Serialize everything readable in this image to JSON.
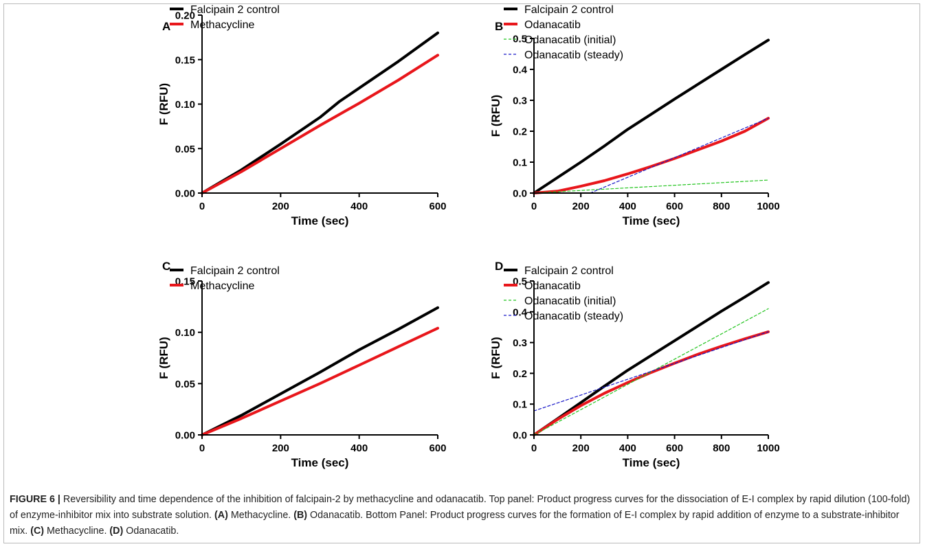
{
  "colors": {
    "control": "#000000",
    "inhibitor": "#e8161b",
    "initial": "#22c41e",
    "steady": "#1616c8"
  },
  "panels": [
    {
      "label": "A",
      "chart_data": {
        "type": "line",
        "xlabel": "Time (sec)",
        "ylabel": "F (RFU)",
        "xlim": [
          0,
          600
        ],
        "ylim": [
          0,
          0.2
        ],
        "xticks": [
          "0",
          "200",
          "400",
          "600"
        ],
        "yticks": [
          "0.00",
          "0.05",
          "0.10",
          "0.15",
          "0.20"
        ],
        "legend": "top-left",
        "series": [
          {
            "name": "Falcipain 2 control",
            "style": "thick",
            "color": "#000000",
            "points": [
              [
                0,
                0
              ],
              [
                100,
                0.026
              ],
              [
                200,
                0.055
              ],
              [
                300,
                0.085
              ],
              [
                350,
                0.103
              ],
              [
                400,
                0.118
              ],
              [
                500,
                0.148
              ],
              [
                600,
                0.18
              ]
            ]
          },
          {
            "name": "Methacycline",
            "style": "thick",
            "color": "#e8161b",
            "points": [
              [
                0,
                0
              ],
              [
                100,
                0.024
              ],
              [
                200,
                0.05
              ],
              [
                300,
                0.076
              ],
              [
                400,
                0.101
              ],
              [
                500,
                0.127
              ],
              [
                600,
                0.155
              ]
            ]
          }
        ]
      }
    },
    {
      "label": "B",
      "chart_data": {
        "type": "line",
        "xlabel": "Time (sec)",
        "ylabel": "F (RFU)",
        "xlim": [
          0,
          1000
        ],
        "ylim": [
          0,
          0.5
        ],
        "xticks": [
          "0",
          "200",
          "400",
          "600",
          "800",
          "1000"
        ],
        "yticks": [
          "0.0",
          "0.1",
          "0.2",
          "0.3",
          "0.4",
          "0.5"
        ],
        "legend": "top-left",
        "series": [
          {
            "name": "Falcipain 2 control",
            "style": "thick",
            "color": "#000000",
            "points": [
              [
                0,
                0
              ],
              [
                100,
                0.05
              ],
              [
                200,
                0.1
              ],
              [
                300,
                0.152
              ],
              [
                400,
                0.206
              ],
              [
                500,
                0.255
              ],
              [
                600,
                0.304
              ],
              [
                700,
                0.352
              ],
              [
                800,
                0.4
              ],
              [
                900,
                0.448
              ],
              [
                1000,
                0.495
              ]
            ]
          },
          {
            "name": "Odanacatib",
            "style": "thick",
            "color": "#e8161b",
            "points": [
              [
                0,
                0
              ],
              [
                100,
                0.006
              ],
              [
                200,
                0.022
              ],
              [
                300,
                0.04
              ],
              [
                400,
                0.062
              ],
              [
                500,
                0.086
              ],
              [
                600,
                0.112
              ],
              [
                700,
                0.14
              ],
              [
                800,
                0.168
              ],
              [
                900,
                0.2
              ],
              [
                1000,
                0.242
              ]
            ]
          },
          {
            "name": "Odanacatib (initial)",
            "style": "dash",
            "color": "#22c41e",
            "points": [
              [
                0,
                0
              ],
              [
                1000,
                0.042
              ]
            ]
          },
          {
            "name": "Odanacatib (steady)",
            "style": "dash",
            "color": "#1616c8",
            "points": [
              [
                240,
                0
              ],
              [
                1000,
                0.242
              ]
            ]
          }
        ]
      }
    },
    {
      "label": "C",
      "chart_data": {
        "type": "line",
        "xlabel": "Time (sec)",
        "ylabel": "F (RFU)",
        "xlim": [
          0,
          600
        ],
        "ylim": [
          0,
          0.15
        ],
        "xticks": [
          "0",
          "200",
          "400",
          "600"
        ],
        "yticks": [
          "0.00",
          "0.05",
          "0.10",
          "0.15"
        ],
        "legend": "top-left",
        "series": [
          {
            "name": "Falcipain 2 control",
            "style": "thick",
            "color": "#000000",
            "points": [
              [
                0,
                0
              ],
              [
                100,
                0.019
              ],
              [
                200,
                0.04
              ],
              [
                300,
                0.061
              ],
              [
                400,
                0.083
              ],
              [
                500,
                0.103
              ],
              [
                600,
                0.124
              ]
            ]
          },
          {
            "name": "Methacycline",
            "style": "thick",
            "color": "#e8161b",
            "points": [
              [
                0,
                0
              ],
              [
                100,
                0.016
              ],
              [
                200,
                0.033
              ],
              [
                300,
                0.05
              ],
              [
                400,
                0.068
              ],
              [
                500,
                0.086
              ],
              [
                600,
                0.104
              ]
            ]
          }
        ]
      }
    },
    {
      "label": "D",
      "chart_data": {
        "type": "line",
        "xlabel": "Time (sec)",
        "ylabel": "F (RFU)",
        "xlim": [
          0,
          1000
        ],
        "ylim": [
          0,
          0.5
        ],
        "xticks": [
          "0",
          "200",
          "400",
          "600",
          "800",
          "1000"
        ],
        "yticks": [
          "0.0",
          "0.1",
          "0.2",
          "0.3",
          "0.4",
          "0.5"
        ],
        "legend": "top-left",
        "series": [
          {
            "name": "Falcipain 2 control",
            "style": "thick",
            "color": "#000000",
            "points": [
              [
                0,
                0
              ],
              [
                100,
                0.052
              ],
              [
                200,
                0.105
              ],
              [
                300,
                0.158
              ],
              [
                400,
                0.21
              ],
              [
                500,
                0.258
              ],
              [
                600,
                0.306
              ],
              [
                700,
                0.354
              ],
              [
                800,
                0.402
              ],
              [
                900,
                0.448
              ],
              [
                1000,
                0.495
              ]
            ]
          },
          {
            "name": "Odanacatib",
            "style": "thick",
            "color": "#e8161b",
            "points": [
              [
                0,
                0
              ],
              [
                100,
                0.05
              ],
              [
                200,
                0.095
              ],
              [
                300,
                0.135
              ],
              [
                400,
                0.17
              ],
              [
                500,
                0.203
              ],
              [
                600,
                0.233
              ],
              [
                700,
                0.262
              ],
              [
                800,
                0.288
              ],
              [
                900,
                0.312
              ],
              [
                1000,
                0.335
              ]
            ]
          },
          {
            "name": "Odanacatib (initial)",
            "style": "dash",
            "color": "#22c41e",
            "points": [
              [
                0,
                0
              ],
              [
                1000,
                0.41
              ]
            ]
          },
          {
            "name": "Odanacatib (steady)",
            "style": "dash",
            "color": "#1616c8",
            "points": [
              [
                0,
                0.078
              ],
              [
                1000,
                0.335
              ]
            ]
          }
        ]
      }
    }
  ],
  "caption": {
    "figure_label": "FIGURE 6 |",
    "text1": " Reversibility and time dependence of the inhibition of falcipain-2 by methacycline and odanacatib. Top panel: Product progress curves for the dissociation of E-I complex by rapid dilution (100-fold) of enzyme-inhibitor mix into substrate solution. ",
    "label_a": "(A)",
    "text2": " Methacycline. ",
    "label_b": "(B)",
    "text3": " Odanacatib. Bottom Panel: Product progress curves for the formation of E-I complex by rapid addition of enzyme to a substrate-inhibitor mix. ",
    "label_c": "(C)",
    "text4": " Methacycline. ",
    "label_d": "(D)",
    "text5": " Odanacatib."
  }
}
